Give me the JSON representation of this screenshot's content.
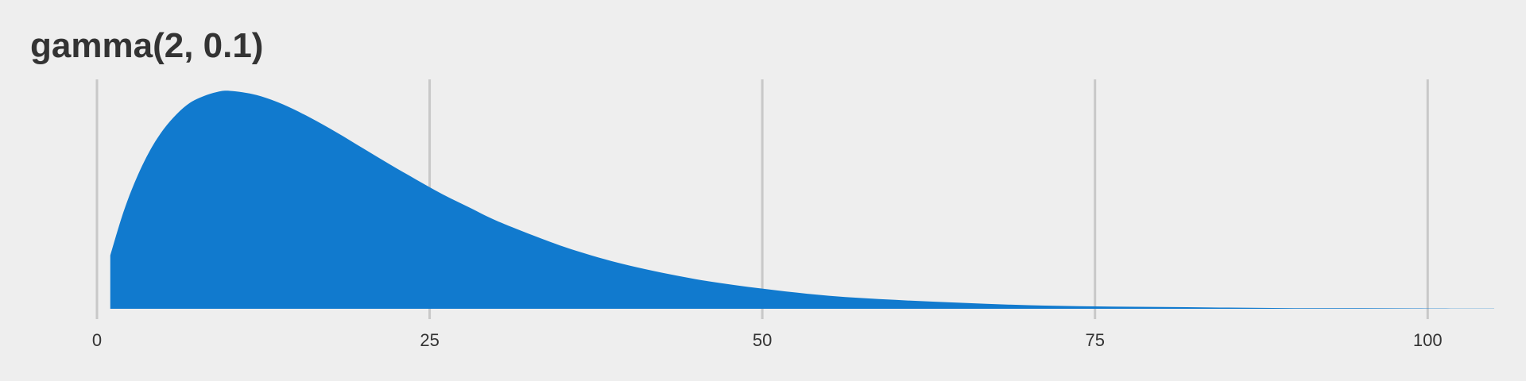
{
  "chart_data": {
    "type": "area",
    "title": "gamma(2, 0.1)",
    "xlabel": "",
    "ylabel": "",
    "distribution": {
      "family": "gamma",
      "shape": 2,
      "rate": 0.1
    },
    "x": [
      1,
      2,
      3,
      4,
      5,
      6,
      7,
      8,
      9,
      10,
      12,
      14,
      16,
      18,
      20,
      22,
      24,
      26,
      28,
      30,
      33,
      36,
      40,
      45,
      50,
      55,
      60,
      65,
      70,
      75,
      80,
      85,
      90,
      95,
      100,
      105
    ],
    "y": [
      0.009,
      0.0164,
      0.0222,
      0.0268,
      0.0303,
      0.0329,
      0.0348,
      0.0359,
      0.0366,
      0.0368,
      0.0361,
      0.0345,
      0.0323,
      0.0298,
      0.0271,
      0.0244,
      0.0218,
      0.0193,
      0.0171,
      0.0149,
      0.0122,
      0.0098,
      0.0073,
      0.005,
      0.0034,
      0.0022,
      0.0015,
      0.001,
      0.0006,
      0.0004,
      0.0003,
      0.0002,
      0.0001,
      0.0001,
      5e-05,
      3e-05
    ],
    "xlim": [
      0,
      105
    ],
    "ylim": [
      0,
      0.037
    ],
    "x_ticks": [
      0,
      25,
      50,
      75,
      100
    ],
    "x_tick_labels": [
      "0",
      "25",
      "50",
      "75",
      "100"
    ],
    "grid": "vertical",
    "fill_color": "#117ACE",
    "grid_color": "#C8C8C8",
    "background_color": "#EEEEEE",
    "text_color": "#333333"
  }
}
